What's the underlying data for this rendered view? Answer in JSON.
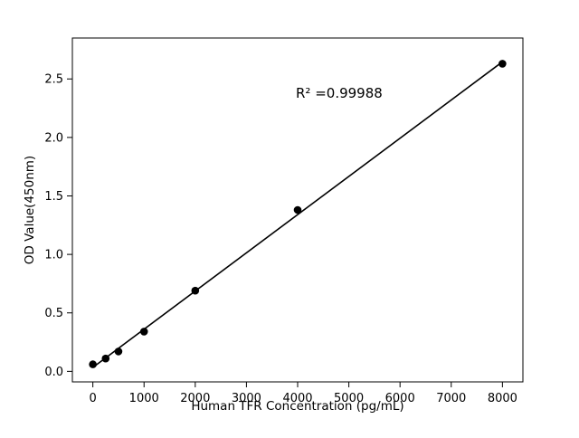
{
  "chart_data": {
    "type": "scatter",
    "title": "",
    "xlabel": "Human TFR Concentration (pg/mL)",
    "ylabel": "OD Value(450nm)",
    "annotation": "R² =0.99988",
    "x": [
      0,
      250,
      500,
      1000,
      2000,
      4000,
      8000
    ],
    "y": [
      0.06,
      0.11,
      0.17,
      0.34,
      0.69,
      1.38,
      2.63
    ],
    "fit": "linear",
    "xlim": [
      -400,
      8400
    ],
    "ylim": [
      -0.09,
      2.85
    ],
    "x_ticks": [
      0,
      1000,
      2000,
      3000,
      4000,
      5000,
      6000,
      7000,
      8000
    ],
    "y_ticks": [
      0.0,
      0.5,
      1.0,
      1.5,
      2.0,
      2.5
    ],
    "grid": false,
    "legend": "none",
    "marker_color": "#000000",
    "line_color": "#000000",
    "axis_color": "#000000",
    "background_color": "#ffffff"
  }
}
